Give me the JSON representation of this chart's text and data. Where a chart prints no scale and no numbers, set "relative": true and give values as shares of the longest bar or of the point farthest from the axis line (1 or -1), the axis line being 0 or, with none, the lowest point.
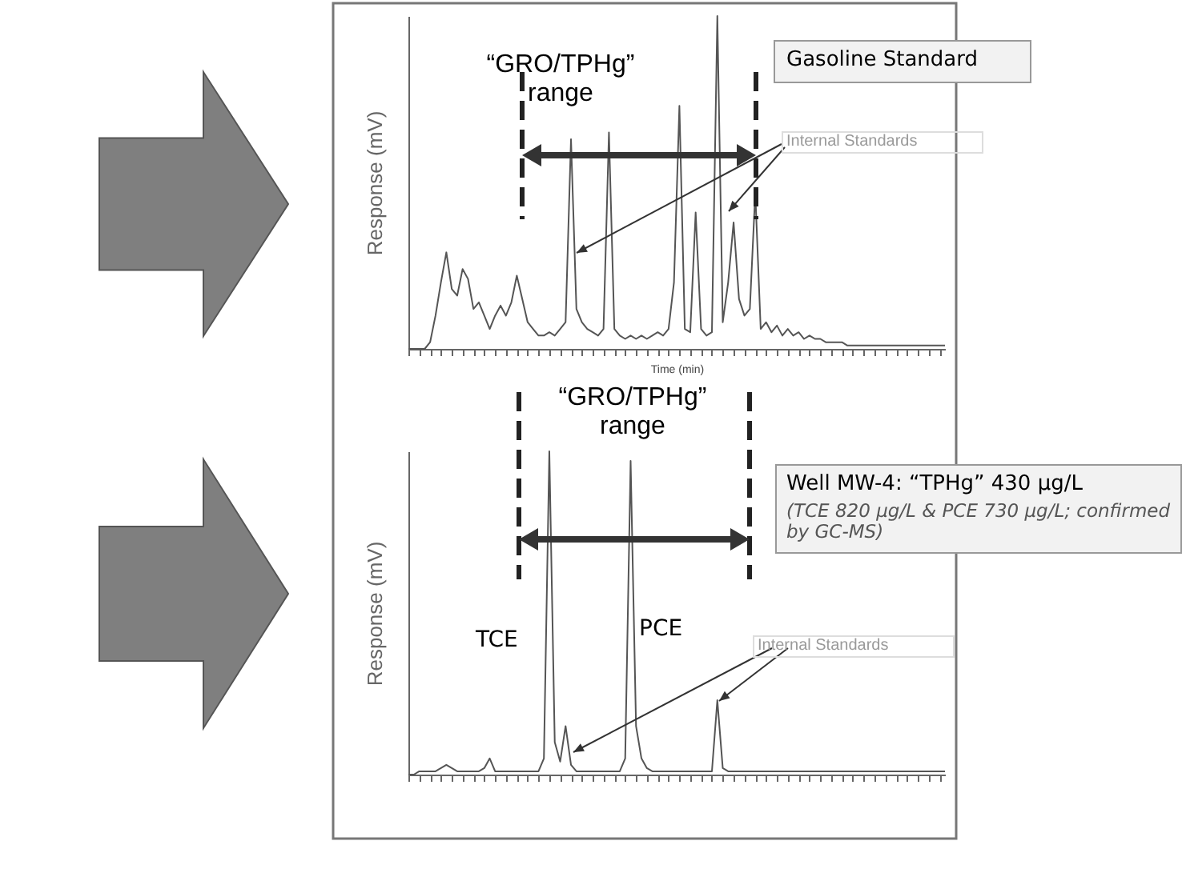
{
  "chart_data": [
    {
      "type": "line",
      "ylabel": "Response (mV)",
      "xlabel": "Time (min)",
      "relative": true,
      "color": "#555555",
      "marker": "none",
      "grid": false,
      "categories": [
        null,
        null,
        null,
        null,
        null,
        null,
        null,
        null,
        null,
        null,
        null,
        null,
        null,
        null,
        null,
        null,
        null,
        null,
        null,
        null,
        null,
        null,
        null,
        null,
        null,
        null,
        null,
        null,
        null,
        null,
        null,
        null,
        null,
        null,
        null,
        null,
        null,
        null,
        null,
        null,
        null,
        null,
        null,
        null,
        null,
        null,
        null,
        null,
        null,
        null,
        null,
        null,
        null,
        null,
        null,
        null,
        null,
        null,
        null,
        null,
        null,
        null,
        null,
        null,
        null,
        null,
        null,
        null,
        null,
        null,
        null,
        null,
        null,
        null,
        null,
        null,
        null,
        null,
        null,
        null,
        null,
        null,
        null,
        null,
        null,
        null,
        null,
        null,
        null,
        null,
        null,
        null,
        null,
        null,
        null,
        null,
        null,
        null,
        null,
        null
      ],
      "values": [
        0,
        0,
        0,
        0,
        0.02,
        0.1,
        0.2,
        0.29,
        0.18,
        0.16,
        0.24,
        0.21,
        0.12,
        0.14,
        0.1,
        0.06,
        0.1,
        0.13,
        0.1,
        0.14,
        0.22,
        0.15,
        0.08,
        0.06,
        0.04,
        0.04,
        0.05,
        0.04,
        0.06,
        0.08,
        0.63,
        0.12,
        0.08,
        0.06,
        0.05,
        0.04,
        0.06,
        0.65,
        0.06,
        0.04,
        0.03,
        0.04,
        0.03,
        0.04,
        0.03,
        0.04,
        0.05,
        0.04,
        0.06,
        0.2,
        0.73,
        0.06,
        0.05,
        0.41,
        0.06,
        0.04,
        0.05,
        1,
        0.08,
        0.2,
        0.38,
        0.15,
        0.1,
        0.12,
        0.47,
        0.06,
        0.08,
        0.05,
        0.07,
        0.04,
        0.06,
        0.04,
        0.05,
        0.03,
        0.04,
        0.03,
        0.03,
        0.02,
        0.02,
        0.02,
        0.02,
        0.01,
        0.01,
        0.01,
        0.01,
        0.01,
        0.01,
        0.01,
        0.01,
        0.01,
        0.01,
        0.01,
        0.01,
        0.01,
        0.01,
        0.01,
        0.01,
        0.01,
        0.01,
        0.01
      ],
      "annotations": [
        "“GRO/TPHg” range",
        "Gasoline Standard",
        "Internal Standards"
      ]
    },
    {
      "type": "line",
      "ylabel": "Response (mV)",
      "relative": true,
      "color": "#555555",
      "marker": "none",
      "grid": false,
      "categories": [
        null,
        null,
        null,
        null,
        null,
        null,
        null,
        null,
        null,
        null,
        null,
        null,
        null,
        null,
        null,
        null,
        null,
        null,
        null,
        null,
        null,
        null,
        null,
        null,
        null,
        null,
        null,
        null,
        null,
        null,
        null,
        null,
        null,
        null,
        null,
        null,
        null,
        null,
        null,
        null,
        null,
        null,
        null,
        null,
        null,
        null,
        null,
        null,
        null,
        null,
        null,
        null,
        null,
        null,
        null,
        null,
        null,
        null,
        null,
        null,
        null,
        null,
        null,
        null,
        null,
        null,
        null,
        null,
        null,
        null,
        null,
        null,
        null,
        null,
        null,
        null,
        null,
        null,
        null,
        null,
        null,
        null,
        null,
        null,
        null,
        null,
        null,
        null,
        null,
        null,
        null,
        null,
        null,
        null,
        null,
        null,
        null,
        null,
        null,
        null
      ],
      "values": [
        0,
        0,
        0.01,
        0.01,
        0.01,
        0.01,
        0.02,
        0.03,
        0.02,
        0.01,
        0.01,
        0.01,
        0.01,
        0.01,
        0.02,
        0.05,
        0.01,
        0.01,
        0.01,
        0.01,
        0.01,
        0.01,
        0.01,
        0.01,
        0.01,
        0.05,
        1,
        0.1,
        0.04,
        0.15,
        0.03,
        0.01,
        0.01,
        0.01,
        0.01,
        0.01,
        0.01,
        0.01,
        0.01,
        0.01,
        0.05,
        0.97,
        0.15,
        0.05,
        0.02,
        0.01,
        0.01,
        0.01,
        0.01,
        0.01,
        0.01,
        0.01,
        0.01,
        0.01,
        0.01,
        0.01,
        0.01,
        0.23,
        0.02,
        0.01,
        0.01,
        0.01,
        0.01,
        0.01,
        0.01,
        0.01,
        0.01,
        0.01,
        0.01,
        0.01,
        0.01,
        0.01,
        0.01,
        0.01,
        0.01,
        0.01,
        0.01,
        0.01,
        0.01,
        0.01,
        0.01,
        0.01,
        0.01,
        0.01,
        0.01,
        0.01,
        0.01,
        0.01,
        0.01,
        0.01,
        0.01,
        0.01,
        0.01,
        0.01,
        0.01,
        0.01,
        0.01,
        0.01,
        0.01,
        0.01
      ],
      "annotations": [
        "“GRO/TPHg” range",
        "TCE",
        "PCE",
        "Internal Standards",
        "Well MW-4: “TPHg” 430 µg/L",
        "(TCE 820 µg/L & PCE 730 µg/L; confirmed by GC-MS)"
      ]
    }
  ]
}
